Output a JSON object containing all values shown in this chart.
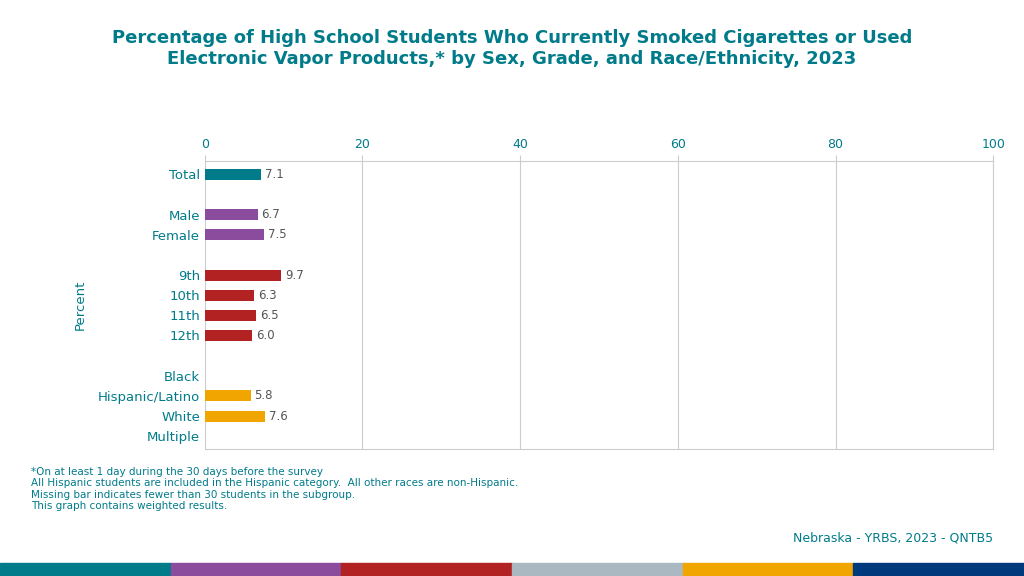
{
  "title": "Percentage of High School Students Who Currently Smoked Cigarettes or Used\nElectronic Vapor Products,* by Sex, Grade, and Race/Ethnicity, 2023",
  "title_color": "#007b8a",
  "title_fontsize": 13,
  "categories": [
    "Total",
    "",
    "Male",
    "Female",
    "",
    "9th",
    "10th",
    "11th",
    "12th",
    "",
    "Black",
    "Hispanic/Latino",
    "White",
    "Multiple"
  ],
  "values": [
    7.1,
    null,
    6.7,
    7.5,
    null,
    9.7,
    6.3,
    6.5,
    6.0,
    null,
    null,
    5.8,
    7.6,
    null
  ],
  "bar_colors": [
    "#007b8a",
    null,
    "#8b4c9e",
    "#8b4c9e",
    null,
    "#b22222",
    "#b22222",
    "#b22222",
    "#b22222",
    null,
    null,
    "#f0a500",
    "#f0a500",
    null
  ],
  "bar_height": 0.55,
  "xlim": [
    0,
    100
  ],
  "xticks": [
    0,
    20,
    40,
    60,
    80,
    100
  ],
  "ylabel": "Percent",
  "ylabel_color": "#007b8a",
  "ytick_color": "#007b8a",
  "xtick_color": "#007b8a",
  "value_label_color": "#555555",
  "value_label_fontsize": 8.5,
  "footnote_lines": [
    "*On at least 1 day during the 30 days before the survey",
    "All Hispanic students are included in the Hispanic category.  All other races are non-Hispanic.",
    "Missing bar indicates fewer than 30 students in the subgroup.",
    "This graph contains weighted results."
  ],
  "footnote_color": "#007b8a",
  "footnote_fontsize": 7.5,
  "source_text": "Nebraska - YRBS, 2023 - QNTB5",
  "source_color": "#007b8a",
  "source_fontsize": 9,
  "bottom_bar_colors": [
    "#007b8a",
    "#8b4c9e",
    "#b22222",
    "#aab8c2",
    "#f0a500",
    "#003a7d"
  ],
  "grid_color": "#cccccc",
  "grid_linewidth": 0.8,
  "background_color": "#ffffff",
  "spine_color": "#cccccc"
}
